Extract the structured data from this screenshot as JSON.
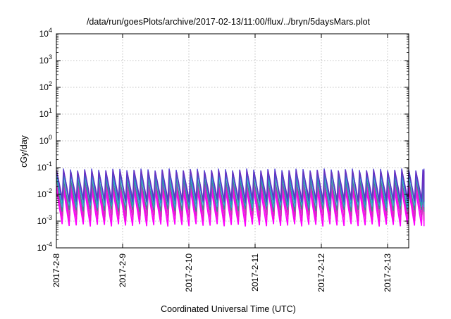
{
  "chart_data": {
    "type": "line",
    "title": "/data/run/goesPlots/archive/2017-02-13/11:00/flux/../bryn/5daysMars.plot",
    "xlabel": "Coordinated Universal Time (UTC)",
    "ylabel": "cGy/day",
    "yscale": "log",
    "ylim": [
      0.0001,
      10000
    ],
    "xlim_days": [
      0,
      5.55
    ],
    "grid": true,
    "y_ticks": [
      {
        "value": 0.0001,
        "base": "10",
        "exp": "-4"
      },
      {
        "value": 0.001,
        "base": "10",
        "exp": "-3"
      },
      {
        "value": 0.01,
        "base": "10",
        "exp": "-2"
      },
      {
        "value": 0.1,
        "base": "10",
        "exp": "-1"
      },
      {
        "value": 1,
        "base": "10",
        "exp": "0"
      },
      {
        "value": 10,
        "base": "10",
        "exp": "1"
      },
      {
        "value": 100,
        "base": "10",
        "exp": "2"
      },
      {
        "value": 1000,
        "base": "10",
        "exp": "3"
      },
      {
        "value": 10000,
        "base": "10",
        "exp": "4"
      }
    ],
    "x_ticks": [
      {
        "day": 0,
        "label": "2017-2-8"
      },
      {
        "day": 1,
        "label": "2017-2-9"
      },
      {
        "day": 2,
        "label": "2017-2-10"
      },
      {
        "day": 3,
        "label": "2017-2-11"
      },
      {
        "day": 4,
        "label": "2017-2-12"
      },
      {
        "day": 5,
        "label": "2017-2-13"
      }
    ],
    "sawtooth": {
      "cycles_per_day": 9.4,
      "series": [
        {
          "color": "#ff00ff",
          "peak": 0.015,
          "trough": 0.0007
        },
        {
          "color": "#ee11dd",
          "peak": 0.02,
          "trough": 0.0011
        },
        {
          "color": "#cc33bb",
          "peak": 0.025,
          "trough": 0.0016
        },
        {
          "color": "#3a8f8a",
          "peak": 0.04,
          "trough": 0.0025
        },
        {
          "color": "#2b9fd9",
          "peak": 0.055,
          "trough": 0.0035
        },
        {
          "color": "#1aa0b0",
          "peak": 0.065,
          "trough": 0.0045
        },
        {
          "color": "#4b3fd6",
          "peak": 0.085,
          "trough": 0.0055
        },
        {
          "color": "#6a2fc0",
          "peak": 0.075,
          "trough": 0.0065
        }
      ]
    }
  }
}
